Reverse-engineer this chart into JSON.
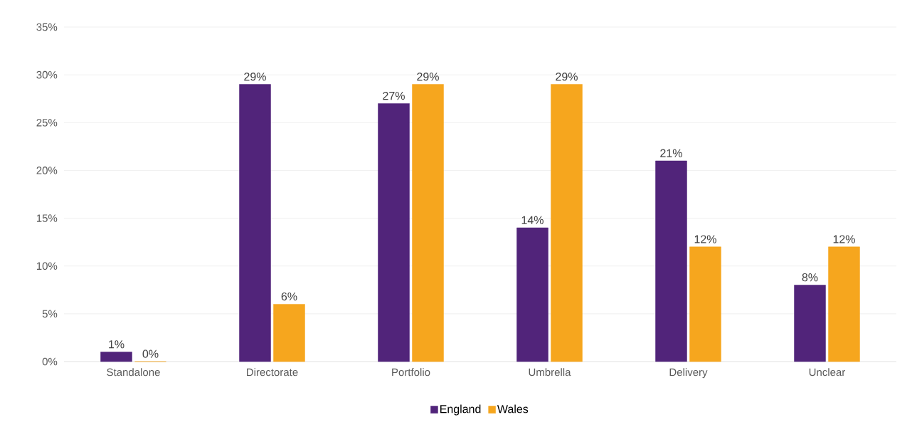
{
  "chart_data": {
    "type": "bar",
    "categories": [
      "Standalone",
      "Directorate",
      "Portfolio",
      "Umbrella",
      "Delivery",
      "Unclear"
    ],
    "series": [
      {
        "name": "England",
        "color": "#51247a",
        "values": [
          1,
          29,
          27,
          14,
          21,
          8
        ],
        "value_labels": [
          "1%",
          "29%",
          "27%",
          "14%",
          "21%",
          "8%"
        ]
      },
      {
        "name": "Wales",
        "color": "#f6a61e",
        "values": [
          0,
          6,
          29,
          29,
          12,
          12
        ],
        "value_labels": [
          "0%",
          "6%",
          "29%",
          "29%",
          "12%",
          "12%"
        ]
      }
    ],
    "ylim": [
      0,
      35
    ],
    "yticks": [
      {
        "value": 0,
        "label": "0%"
      },
      {
        "value": 5,
        "label": "5%"
      },
      {
        "value": 10,
        "label": "10%"
      },
      {
        "value": 15,
        "label": "15%"
      },
      {
        "value": 20,
        "label": "20%"
      },
      {
        "value": 25,
        "label": "25%"
      },
      {
        "value": 30,
        "label": "30%"
      },
      {
        "value": 35,
        "label": "35%"
      }
    ],
    "grid": "y",
    "legend": "bottom"
  }
}
